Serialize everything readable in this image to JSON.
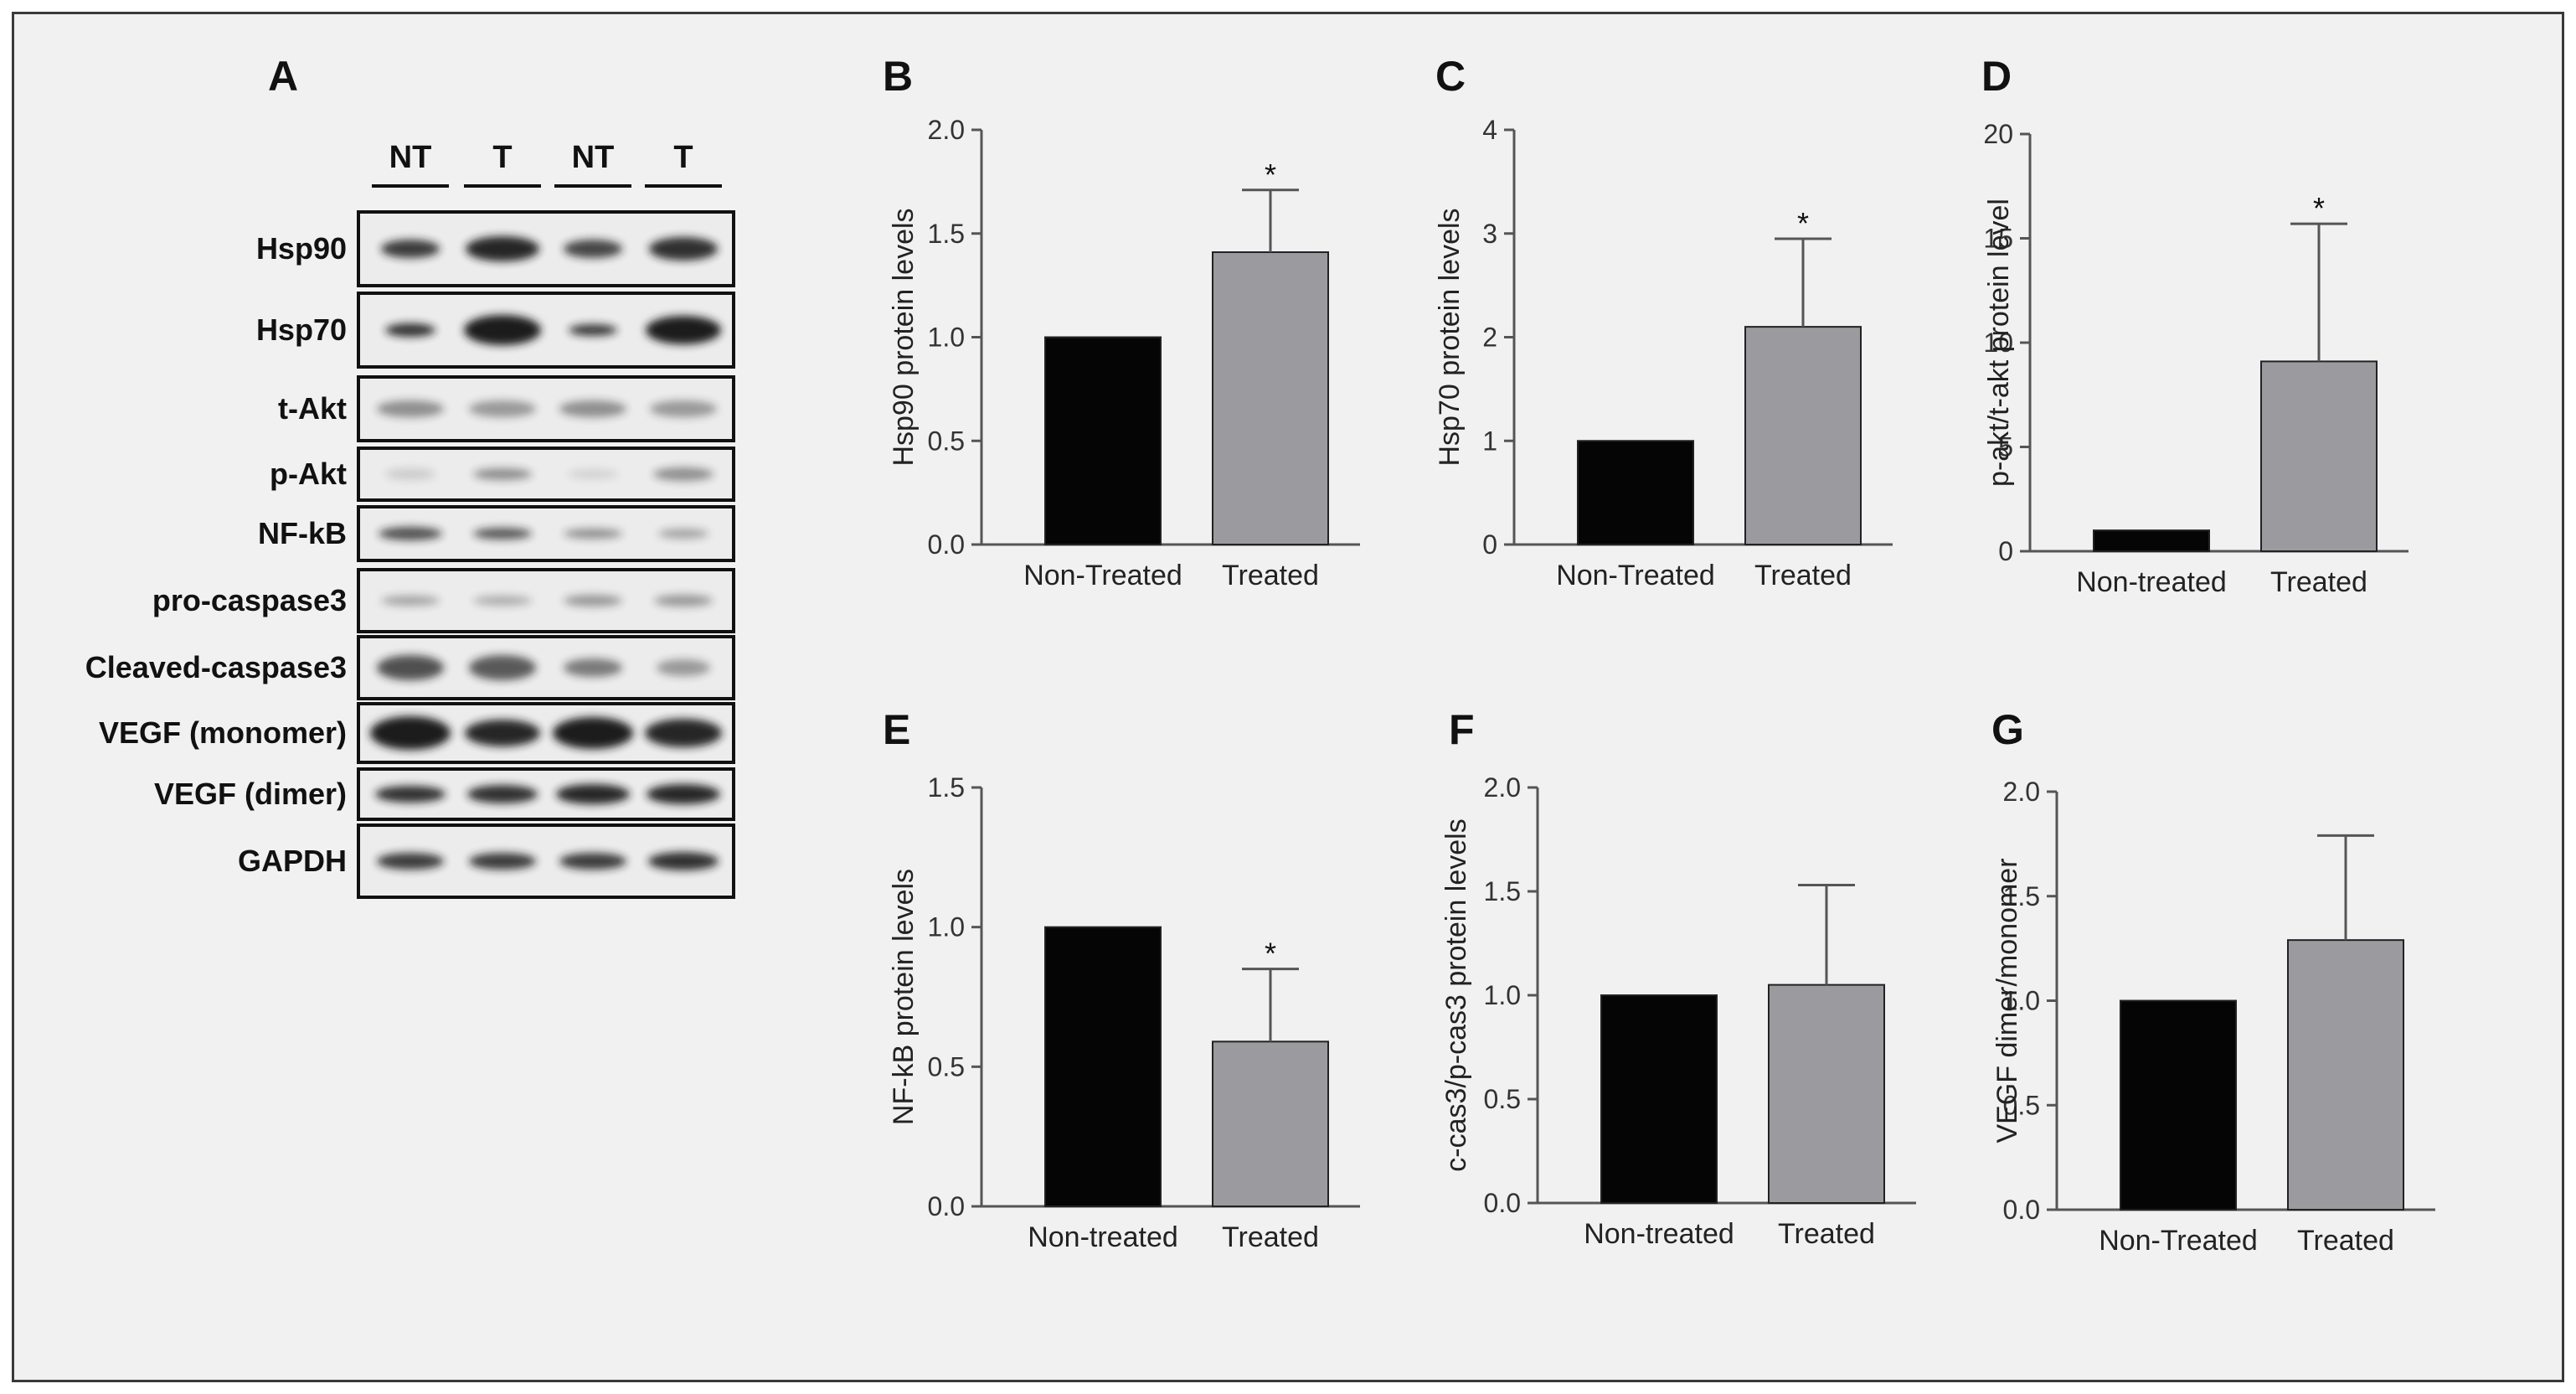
{
  "western_blot": {
    "panel_label": "A",
    "lanes": [
      "NT",
      "T",
      "NT",
      "T"
    ],
    "proteins": [
      "Hsp90",
      "Hsp70",
      "t-Akt",
      "p-Akt",
      "NF-kB",
      "pro-caspase3",
      "Cleaved-caspase3",
      "VEGF (monomer)",
      "VEGF (dimer)",
      "GAPDH"
    ]
  },
  "colors": {
    "non_treated_bar": "#050505",
    "treated_bar": "#9b9b9f",
    "axis": "#555555",
    "background": "#f1f1f1"
  },
  "chart_data": [
    {
      "panel": "B",
      "type": "bar",
      "categories": [
        "Non-Treated",
        "Treated"
      ],
      "values": [
        1.0,
        1.41
      ],
      "error_upper": [
        0,
        0.3
      ],
      "significance": [
        "",
        "*"
      ],
      "ylabel": "Hsp90 protein levels",
      "ylim": [
        0,
        2.0
      ],
      "yticks": [
        0.0,
        0.5,
        1.0,
        1.5,
        2.0
      ],
      "ytick_labels": [
        "0.0",
        "0.5",
        "1.0",
        "1.5",
        "2.0"
      ]
    },
    {
      "panel": "C",
      "type": "bar",
      "categories": [
        "Non-Treated",
        "Treated"
      ],
      "values": [
        1.0,
        2.1
      ],
      "error_upper": [
        0,
        0.85
      ],
      "significance": [
        "",
        "*"
      ],
      "ylabel": "Hsp70 protein levels",
      "ylim": [
        0,
        4
      ],
      "yticks": [
        0,
        1,
        2,
        3,
        4
      ],
      "ytick_labels": [
        "0",
        "1",
        "2",
        "3",
        "4"
      ]
    },
    {
      "panel": "D",
      "type": "bar",
      "categories": [
        "Non-treated",
        "Treated"
      ],
      "values": [
        1.0,
        9.1
      ],
      "error_upper": [
        0,
        6.6
      ],
      "significance": [
        "",
        "*"
      ],
      "ylabel": "p-akt/t-akt protein level",
      "ylim": [
        0,
        20
      ],
      "yticks": [
        0,
        5,
        10,
        15,
        20
      ],
      "ytick_labels": [
        "0",
        "5",
        "10",
        "15",
        "20"
      ]
    },
    {
      "panel": "E",
      "type": "bar",
      "categories": [
        "Non-treated",
        "Treated"
      ],
      "values": [
        1.0,
        0.59
      ],
      "error_upper": [
        0,
        0.26
      ],
      "significance": [
        "",
        "*"
      ],
      "ylabel": "NF-kB protein levels",
      "ylim": [
        0,
        1.5
      ],
      "yticks": [
        0.0,
        0.5,
        1.0,
        1.5
      ],
      "ytick_labels": [
        "0.0",
        "0.5",
        "1.0",
        "1.5"
      ]
    },
    {
      "panel": "F",
      "type": "bar",
      "categories": [
        "Non-treated",
        "Treated"
      ],
      "values": [
        1.0,
        1.05
      ],
      "error_upper": [
        0,
        0.48
      ],
      "significance": [
        "",
        ""
      ],
      "ylabel": "c-cas3/p-cas3 protein levels",
      "ylim": [
        0,
        2.0
      ],
      "yticks": [
        0.0,
        0.5,
        1.0,
        1.5,
        2.0
      ],
      "ytick_labels": [
        "0.0",
        "0.5",
        "1.0",
        "1.5",
        "2.0"
      ]
    },
    {
      "panel": "G",
      "type": "bar",
      "categories": [
        "Non-Treated",
        "Treated"
      ],
      "values": [
        1.0,
        1.29
      ],
      "error_upper": [
        0,
        0.5
      ],
      "significance": [
        "",
        ""
      ],
      "ylabel": "VEGF dimer/monomer",
      "ylim": [
        0,
        2.0
      ],
      "yticks": [
        0.0,
        0.5,
        1.0,
        1.5,
        2.0
      ],
      "ytick_labels": [
        "0.0",
        "0.5",
        "1.0",
        "1.5",
        "2.0"
      ]
    }
  ]
}
